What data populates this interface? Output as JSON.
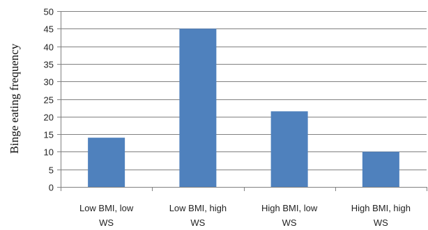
{
  "chart_data": {
    "type": "bar",
    "ylabel": "Binge eating frequency",
    "xlabel": "",
    "ylim": [
      0,
      50
    ],
    "yticks": [
      0,
      5,
      10,
      15,
      20,
      25,
      30,
      35,
      40,
      45,
      50
    ],
    "grid": true,
    "categories": [
      [
        "Low BMI, low",
        "WS"
      ],
      [
        "Low BMI, high",
        "WS"
      ],
      [
        "High BMI, low",
        "WS"
      ],
      [
        "High BMI, high",
        "WS"
      ]
    ],
    "values": [
      14,
      45,
      21.5,
      10
    ],
    "bar_color": "#4f81bd",
    "grid_color": "#808080",
    "axis_color": "#808080"
  }
}
